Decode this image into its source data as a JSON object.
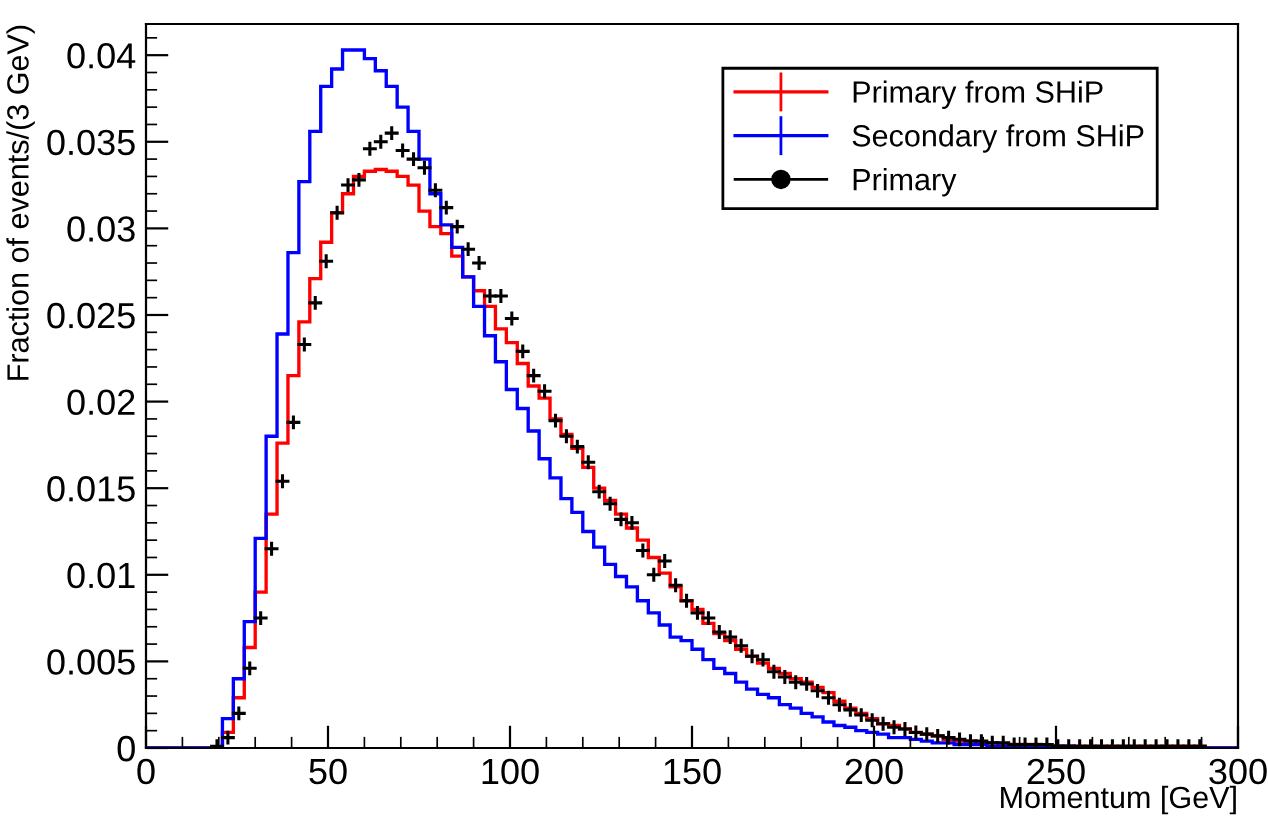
{
  "chart_data": {
    "type": "histogram",
    "xlabel": "Momentum [GeV]",
    "ylabel": "Fraction of events/(3 GeV)",
    "bins": [
      0,
      3,
      6,
      9,
      12,
      15,
      18,
      21,
      24,
      27,
      30,
      33,
      36,
      39,
      42,
      45,
      48,
      51,
      54,
      57,
      60,
      63,
      66,
      69,
      72,
      75,
      78,
      81,
      84,
      87,
      90,
      93,
      96,
      99,
      102,
      105,
      108,
      111,
      114,
      117,
      120,
      123,
      126,
      129,
      132,
      135,
      138,
      141,
      144,
      147,
      150,
      153,
      156,
      159,
      162,
      165,
      168,
      171,
      174,
      177,
      180,
      183,
      186,
      189,
      192,
      195,
      198,
      201,
      204,
      207,
      210,
      213,
      216,
      219,
      222,
      225,
      228,
      231,
      234,
      237,
      240,
      243,
      246,
      249,
      252,
      255,
      258,
      261,
      264,
      267,
      270,
      273,
      276,
      279,
      282,
      285,
      288,
      291,
      294,
      297,
      300
    ],
    "series": [
      {
        "name": "Primary from SHiP",
        "color": "#ff0000",
        "values": [
          0,
          0,
          0,
          0,
          0,
          0,
          0,
          0.0009,
          0.0029,
          0.0058,
          0.009,
          0.0135,
          0.0176,
          0.0215,
          0.0246,
          0.0271,
          0.0292,
          0.0309,
          0.032,
          0.033,
          0.0333,
          0.0334,
          0.0333,
          0.033,
          0.0325,
          0.031,
          0.0301,
          0.0297,
          0.0284,
          0.0272,
          0.0264,
          0.0255,
          0.0242,
          0.0234,
          0.0222,
          0.0209,
          0.0202,
          0.019,
          0.0181,
          0.0173,
          0.0162,
          0.015,
          0.0143,
          0.0135,
          0.0127,
          0.012,
          0.011,
          0.0101,
          0.0093,
          0.0085,
          0.008,
          0.0072,
          0.0066,
          0.0062,
          0.0057,
          0.0053,
          0.0049,
          0.0046,
          0.0043,
          0.004,
          0.0038,
          0.0035,
          0.0032,
          0.0027,
          0.0023,
          0.002,
          0.0017,
          0.0014,
          0.0013,
          0.0011,
          0.0009,
          0.0008,
          0.0007,
          0.0005,
          0.0004,
          0.0004,
          0.0003,
          0.0003,
          0.0002,
          0.0002,
          0.0002,
          0.0002,
          0.0001,
          0.0001,
          0.0001,
          0.0001,
          0.0001,
          0.0001,
          0.0001,
          0.0001,
          0.0001,
          0.0001,
          0.0001,
          0.0001,
          0.0001,
          0.0001,
          0.0001,
          0,
          0,
          0
        ]
      },
      {
        "name": "Secondary from SHiP",
        "color": "#0000ff",
        "values": [
          0,
          0,
          0,
          0,
          0,
          0,
          0,
          0.0017,
          0.004,
          0.0073,
          0.0121,
          0.018,
          0.0239,
          0.0286,
          0.0327,
          0.0356,
          0.0382,
          0.0392,
          0.0403,
          0.0403,
          0.0398,
          0.0391,
          0.0382,
          0.037,
          0.0356,
          0.034,
          0.032,
          0.0302,
          0.0289,
          0.0272,
          0.0255,
          0.0238,
          0.0223,
          0.0207,
          0.0196,
          0.0183,
          0.0167,
          0.0156,
          0.0144,
          0.0136,
          0.0125,
          0.0116,
          0.0106,
          0.0099,
          0.0093,
          0.0085,
          0.0078,
          0.0071,
          0.0064,
          0.0062,
          0.0057,
          0.0051,
          0.0046,
          0.0043,
          0.0038,
          0.0034,
          0.0031,
          0.0029,
          0.0025,
          0.0023,
          0.002,
          0.0018,
          0.0015,
          0.0013,
          0.0012,
          0.001,
          0.0009,
          0.0008,
          0.0006,
          0.0006,
          0.0005,
          0.0004,
          0.0003,
          0.0003,
          0.0002,
          0.0002,
          0.0002,
          0.0001,
          0.0001,
          0.0001,
          0.0001,
          0.0001,
          0.0001,
          0.0001,
          0.0001,
          0,
          0,
          0,
          0,
          0,
          0,
          0,
          0,
          0,
          0,
          0,
          0,
          0,
          0,
          0
        ]
      },
      {
        "name": "Primary",
        "type": "scatter",
        "color": "#000000",
        "marker": "cross",
        "x": [
          19.5,
          22.5,
          25.5,
          28.5,
          31.5,
          34.5,
          37.5,
          40.5,
          43.5,
          46.5,
          49.5,
          52.5,
          55.5,
          58.5,
          61.5,
          64.5,
          67.5,
          70.5,
          73.5,
          76.5,
          79.5,
          82.5,
          85.5,
          88.5,
          91.5,
          94.5,
          97.5,
          100.5,
          103.5,
          106.5,
          109.5,
          112.5,
          115.5,
          118.5,
          121.5,
          124.5,
          127.5,
          130.5,
          133.5,
          136.5,
          139.5,
          142.5,
          145.5,
          148.5,
          151.5,
          154.5,
          157.5,
          160.5,
          163.5,
          166.5,
          169.5,
          172.5,
          175.5,
          178.5,
          181.5,
          184.5,
          187.5,
          190.5,
          193.5,
          196.5,
          199.5,
          202.5,
          205.5,
          208.5,
          211.5,
          214.5,
          217.5,
          220.5,
          223.5,
          226.5,
          229.5,
          232.5,
          235.5,
          238.5,
          241.5,
          244.5,
          247.5,
          250.5,
          253.5,
          256.5,
          259.5,
          262.5,
          265.5,
          268.5,
          271.5,
          274.5,
          277.5,
          280.5,
          283.5,
          286.5,
          289.5
        ],
        "values": [
          0.0001,
          0.0006,
          0.002,
          0.0046,
          0.0075,
          0.0115,
          0.0154,
          0.0188,
          0.0233,
          0.0257,
          0.0281,
          0.0309,
          0.0325,
          0.0328,
          0.0346,
          0.035,
          0.0355,
          0.0345,
          0.034,
          0.0335,
          0.0322,
          0.0312,
          0.0301,
          0.0288,
          0.028,
          0.0261,
          0.0261,
          0.0248,
          0.0229,
          0.0215,
          0.0206,
          0.0189,
          0.018,
          0.0174,
          0.0165,
          0.0148,
          0.0141,
          0.0132,
          0.013,
          0.0114,
          0.01,
          0.0108,
          0.0094,
          0.0085,
          0.0078,
          0.0075,
          0.0067,
          0.0064,
          0.0059,
          0.0053,
          0.0051,
          0.0044,
          0.0041,
          0.0038,
          0.0037,
          0.0033,
          0.0029,
          0.0025,
          0.0022,
          0.0019,
          0.0016,
          0.0014,
          0.0012,
          0.0011,
          0.0009,
          0.0008,
          0.0007,
          0.0006,
          0.0005,
          0.0004,
          0.0004,
          0.0003,
          0.0003,
          0.0002,
          0.0002,
          0.0002,
          0.0002,
          0.0001,
          0.0001,
          0.0001,
          0.0001,
          0.0001,
          0.0001,
          0.0001,
          0.0001,
          0.0001,
          0.0001,
          0.0001,
          0.0001,
          0.0001,
          0.0001
        ]
      }
    ],
    "xlim": [
      0,
      300
    ],
    "ylim": [
      0,
      0.0418
    ],
    "xticks": [
      0,
      50,
      100,
      150,
      200,
      250,
      300
    ],
    "yticks": [
      0,
      0.005,
      0.01,
      0.015,
      0.02,
      0.025,
      0.03,
      0.035,
      0.04
    ],
    "grid": false,
    "legend": "top right"
  }
}
